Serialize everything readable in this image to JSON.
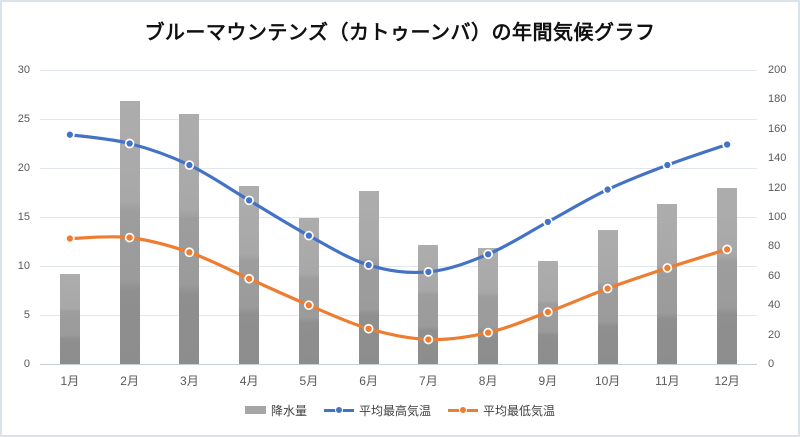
{
  "chart_data": {
    "type": "combo bar+line",
    "title": "ブルーマウンテンズ（カトゥーンバ）の年間気候グラフ",
    "categories": [
      "1月",
      "2月",
      "3月",
      "4月",
      "5月",
      "6月",
      "7月",
      "8月",
      "9月",
      "10月",
      "11月",
      "12月"
    ],
    "series": [
      {
        "name": "降水量",
        "type": "bar",
        "axis": "right",
        "color": "#a6a6a6",
        "values": [
          61,
          179,
          170,
          121,
          99,
          118,
          81,
          79,
          70,
          91,
          109,
          120
        ]
      },
      {
        "name": "平均最高気温",
        "type": "line",
        "axis": "left",
        "color": "#4472c4",
        "marker": "circle",
        "values": [
          23.4,
          22.5,
          20.3,
          16.7,
          13.1,
          10.1,
          9.4,
          11.2,
          14.5,
          17.8,
          20.3,
          22.4
        ]
      },
      {
        "name": "平均最低気温",
        "type": "line",
        "axis": "left",
        "color": "#ed7d31",
        "marker": "circle",
        "values": [
          12.8,
          12.9,
          11.4,
          8.7,
          6.0,
          3.6,
          2.5,
          3.2,
          5.3,
          7.7,
          9.8,
          11.7
        ]
      }
    ],
    "left_axis": {
      "min": 0,
      "max": 30,
      "ticks": [
        "0",
        "5",
        "10",
        "15",
        "20",
        "25",
        "30"
      ]
    },
    "right_axis": {
      "min": 0,
      "max": 200,
      "ticks": [
        "0",
        "20",
        "40",
        "60",
        "80",
        "100",
        "120",
        "140",
        "160",
        "180",
        "200"
      ]
    },
    "grid": true,
    "smoothed_lines": true,
    "legend_position": "bottom"
  },
  "colors": {
    "gridline": "#e2e7ee",
    "zero_line": "#c9cfd8",
    "axis_label": "#595959",
    "legend_text": "#3f3f3f",
    "title_text": "#111111",
    "marker_ring": "#ffffff"
  }
}
